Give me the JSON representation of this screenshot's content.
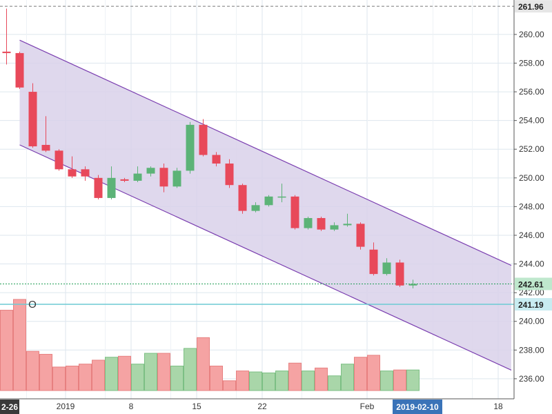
{
  "chart_data": {
    "type": "candlestick",
    "ylim": [
      234.6,
      262.4
    ],
    "grid": true,
    "y_ticks": [
      236,
      238,
      240,
      242,
      244,
      246,
      248,
      250,
      252,
      254,
      256,
      258,
      260
    ],
    "x_tick_labels": [
      {
        "label": "2019",
        "day": 5
      },
      {
        "label": "8",
        "day": 10
      },
      {
        "label": "15",
        "day": 15
      },
      {
        "label": "22",
        "day": 20
      },
      {
        "label": "Feb",
        "day": 28
      },
      {
        "label": "18",
        "day": 38
      }
    ],
    "x_range_days": [
      0,
      39
    ],
    "left_date_label": "2-26",
    "cursor_date_label": "2019-02-10",
    "top_line": {
      "value": 261.96,
      "label": "261.96"
    },
    "price_line": {
      "value": 242.61,
      "label": "242.61"
    },
    "horizontal_line": {
      "value": 241.19,
      "label": "241.19",
      "marker": "O"
    },
    "channel": {
      "upper": [
        {
          "day": 1.5,
          "value": 259.6
        },
        {
          "day": 39,
          "value": 243.9
        }
      ],
      "lower": [
        {
          "day": 1.5,
          "value": 252.3
        },
        {
          "day": 39,
          "value": 236.6
        }
      ],
      "fill": "#d9d1ea",
      "stroke": "#7b3fb0"
    },
    "colors": {
      "up": "#5cb377",
      "down": "#e8495a",
      "vol_up": "#a9d6a9",
      "vol_down": "#f5a3a3",
      "grid": "#dde6ee"
    },
    "candles": [
      {
        "day": 0.5,
        "open": 258.8,
        "high": 261.8,
        "low": 257.9,
        "close": 258.7,
        "volume": 0.82
      },
      {
        "day": 1.5,
        "open": 258.7,
        "high": 258.8,
        "low": 256.2,
        "close": 256.3,
        "volume": 0.93
      },
      {
        "day": 2.5,
        "open": 256.0,
        "high": 256.6,
        "low": 252.1,
        "close": 252.2,
        "volume": 0.4
      },
      {
        "day": 3.5,
        "open": 252.3,
        "high": 254.3,
        "low": 251.8,
        "close": 251.9,
        "volume": 0.37
      },
      {
        "day": 4.5,
        "open": 251.9,
        "high": 252.0,
        "low": 250.5,
        "close": 250.6,
        "volume": 0.24
      },
      {
        "day": 5.5,
        "open": 250.6,
        "high": 251.5,
        "low": 250.0,
        "close": 250.1,
        "volume": 0.25
      },
      {
        "day": 6.5,
        "open": 250.6,
        "high": 250.8,
        "low": 249.8,
        "close": 250.1,
        "volume": 0.27
      },
      {
        "day": 7.5,
        "open": 250.0,
        "high": 250.2,
        "low": 248.5,
        "close": 248.6,
        "volume": 0.31
      },
      {
        "day": 8.5,
        "open": 248.6,
        "high": 250.8,
        "low": 248.5,
        "close": 250.0,
        "volume": 0.34
      },
      {
        "day": 9.5,
        "open": 249.9,
        "high": 250.0,
        "low": 249.7,
        "close": 249.8,
        "volume": 0.35
      },
      {
        "day": 10.5,
        "open": 249.8,
        "high": 250.8,
        "low": 249.7,
        "close": 250.3,
        "volume": 0.27
      },
      {
        "day": 11.5,
        "open": 250.3,
        "high": 250.8,
        "low": 250.1,
        "close": 250.7,
        "volume": 0.38
      },
      {
        "day": 12.5,
        "open": 250.7,
        "high": 251.0,
        "low": 249.0,
        "close": 249.4,
        "volume": 0.38
      },
      {
        "day": 13.5,
        "open": 249.4,
        "high": 250.7,
        "low": 249.3,
        "close": 250.5,
        "volume": 0.25
      },
      {
        "day": 14.5,
        "open": 250.5,
        "high": 253.9,
        "low": 250.3,
        "close": 253.7,
        "volume": 0.43
      },
      {
        "day": 15.5,
        "open": 253.7,
        "high": 254.1,
        "low": 251.5,
        "close": 251.6,
        "volume": 0.54
      },
      {
        "day": 16.5,
        "open": 251.6,
        "high": 251.8,
        "low": 250.8,
        "close": 251.0,
        "volume": 0.25
      },
      {
        "day": 17.5,
        "open": 251.0,
        "high": 251.3,
        "low": 249.3,
        "close": 249.5,
        "volume": 0.1
      },
      {
        "day": 18.5,
        "open": 249.5,
        "high": 249.6,
        "low": 247.5,
        "close": 247.7,
        "volume": 0.2
      },
      {
        "day": 19.5,
        "open": 247.7,
        "high": 248.3,
        "low": 247.6,
        "close": 248.1,
        "volume": 0.19
      },
      {
        "day": 20.5,
        "open": 248.1,
        "high": 248.8,
        "low": 248.0,
        "close": 248.7,
        "volume": 0.18
      },
      {
        "day": 21.5,
        "open": 248.7,
        "high": 249.6,
        "low": 248.3,
        "close": 248.7,
        "volume": 0.2
      },
      {
        "day": 22.5,
        "open": 248.7,
        "high": 248.8,
        "low": 246.4,
        "close": 246.5,
        "volume": 0.28
      },
      {
        "day": 23.5,
        "open": 246.5,
        "high": 247.3,
        "low": 246.4,
        "close": 247.2,
        "volume": 0.2
      },
      {
        "day": 24.5,
        "open": 247.2,
        "high": 247.3,
        "low": 246.3,
        "close": 246.4,
        "volume": 0.23
      },
      {
        "day": 25.5,
        "open": 246.4,
        "high": 246.9,
        "low": 246.3,
        "close": 246.7,
        "volume": 0.15
      },
      {
        "day": 26.5,
        "open": 246.7,
        "high": 247.5,
        "low": 246.6,
        "close": 246.8,
        "volume": 0.27
      },
      {
        "day": 27.5,
        "open": 246.8,
        "high": 246.9,
        "low": 245.0,
        "close": 245.2,
        "volume": 0.34
      },
      {
        "day": 28.5,
        "open": 245.0,
        "high": 245.5,
        "low": 243.2,
        "close": 243.3,
        "volume": 0.36
      },
      {
        "day": 29.5,
        "open": 243.3,
        "high": 244.4,
        "low": 243.2,
        "close": 244.1,
        "volume": 0.2
      },
      {
        "day": 30.5,
        "open": 244.1,
        "high": 244.3,
        "low": 242.4,
        "close": 242.5,
        "volume": 0.21
      },
      {
        "day": 31.5,
        "open": 242.5,
        "high": 242.9,
        "low": 242.3,
        "close": 242.61,
        "volume": 0.21
      }
    ]
  }
}
